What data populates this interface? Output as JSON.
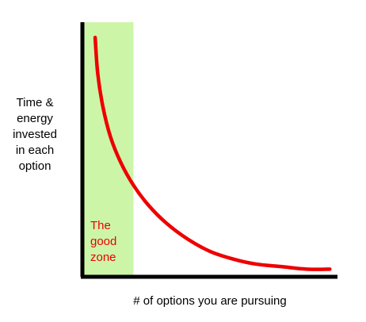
{
  "chart_data": {
    "type": "line",
    "ylabel": "Time &\nenergy\ninvested\nin each\noption",
    "xlabel": "# of options you are pursuing",
    "ticks": "none",
    "grid": false,
    "xlim": [
      0,
      1
    ],
    "ylim": [
      0,
      1
    ],
    "series": [
      {
        "color": "#ee0000",
        "curve": "decreasing, approaching zero as x grows",
        "points": [
          [
            0.05,
            0.94
          ],
          [
            0.06,
            0.8
          ],
          [
            0.08,
            0.67
          ],
          [
            0.11,
            0.55
          ],
          [
            0.15,
            0.45
          ],
          [
            0.2,
            0.36
          ],
          [
            0.26,
            0.28
          ],
          [
            0.33,
            0.21
          ],
          [
            0.41,
            0.15
          ],
          [
            0.5,
            0.1
          ],
          [
            0.59,
            0.07
          ],
          [
            0.68,
            0.05
          ],
          [
            0.78,
            0.04
          ],
          [
            0.88,
            0.03
          ],
          [
            0.97,
            0.03
          ]
        ]
      }
    ],
    "highlight_band": {
      "x_range": [
        0,
        0.2
      ],
      "color": "#ccf5a8",
      "label": "The\ngood\nzone",
      "label_color": "#ee0000"
    }
  }
}
